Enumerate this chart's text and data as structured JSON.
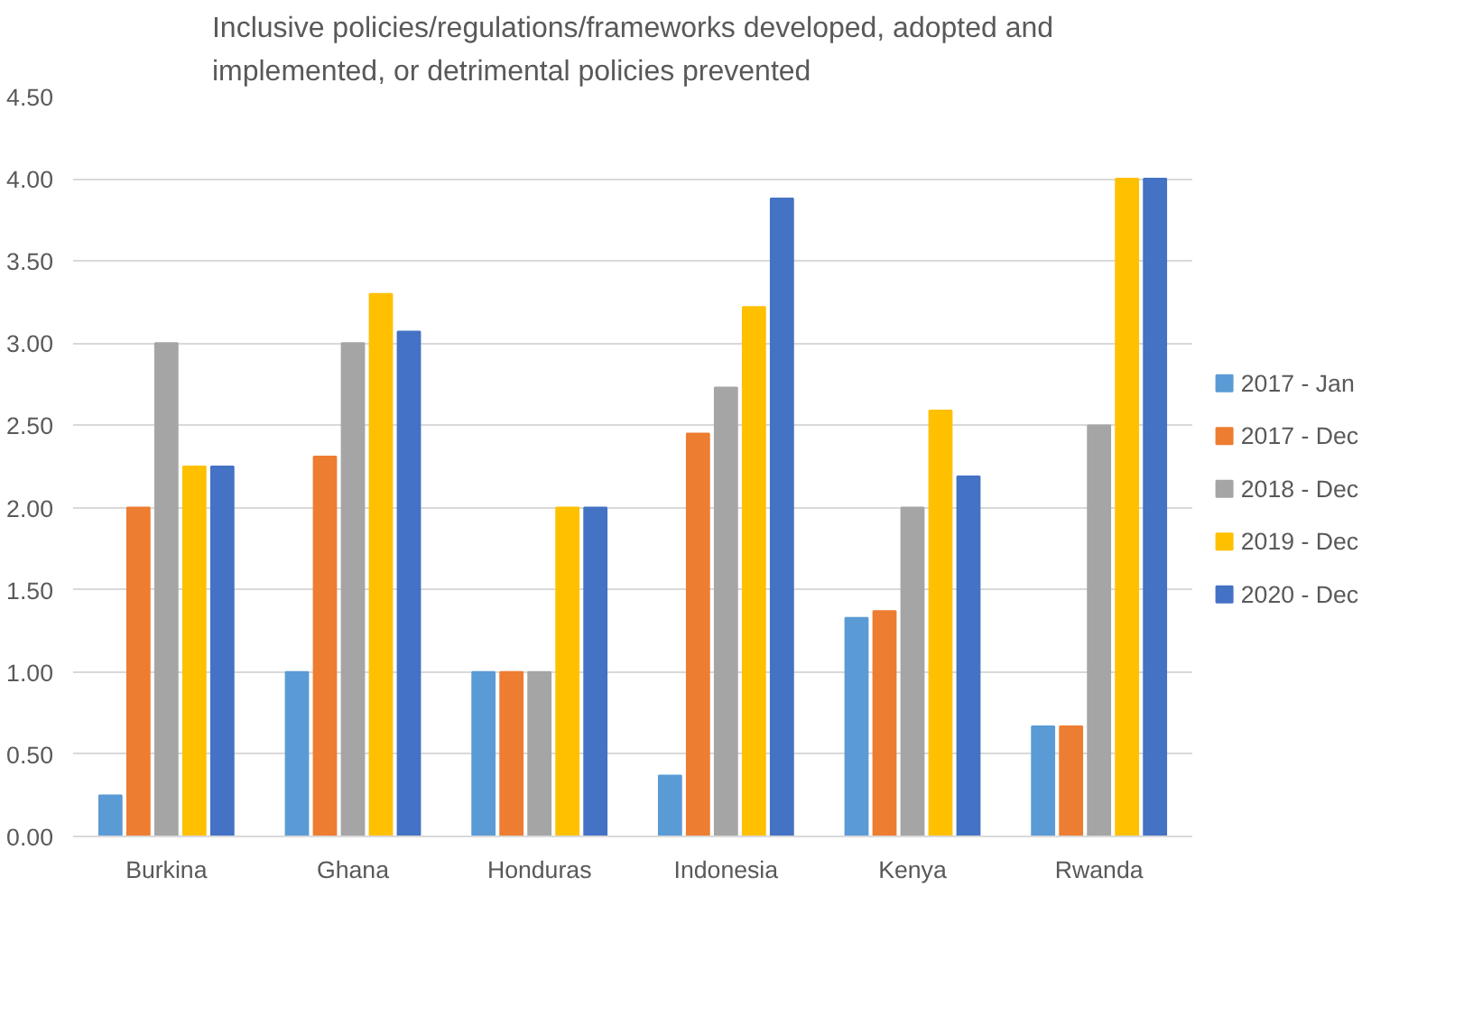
{
  "chart_data": {
    "type": "bar",
    "title": "Inclusive policies/regulations/frameworks developed, adopted and\nimplemented, or detrimental policies prevented",
    "categories": [
      "Burkina",
      "Ghana",
      "Honduras",
      "Indonesia",
      "Kenya",
      "Rwanda"
    ],
    "series": [
      {
        "name": "2017 - Jan",
        "color": "#5b9bd5",
        "values": [
          0.25,
          1.0,
          1.0,
          0.37,
          1.33,
          0.67
        ]
      },
      {
        "name": "2017 - Dec",
        "color": "#ed7d31",
        "values": [
          2.0,
          2.31,
          1.0,
          2.45,
          1.37,
          0.67
        ]
      },
      {
        "name": "2018 - Dec",
        "color": "#a5a5a5",
        "values": [
          3.0,
          3.0,
          1.0,
          2.73,
          2.0,
          2.5
        ]
      },
      {
        "name": "2019 - Dec",
        "color": "#ffc000",
        "values": [
          2.25,
          3.3,
          2.0,
          3.22,
          2.59,
          4.0
        ]
      },
      {
        "name": "2020 - Dec",
        "color": "#4472c4",
        "values": [
          2.25,
          3.07,
          2.0,
          3.88,
          2.19,
          4.0
        ]
      }
    ],
    "ylim": [
      0,
      4.5
    ],
    "yticks": [
      {
        "value": 0,
        "label": "0.00"
      },
      {
        "value": 0.5,
        "label": "0.50"
      },
      {
        "value": 1,
        "label": "1.00"
      },
      {
        "value": 1.5,
        "label": "1.50"
      },
      {
        "value": 2,
        "label": "2.00"
      },
      {
        "value": 2.5,
        "label": "2.50"
      },
      {
        "value": 3,
        "label": "3.00"
      },
      {
        "value": 3.5,
        "label": "3.50"
      },
      {
        "value": 4,
        "label": "4.00"
      },
      {
        "value": 4.5,
        "label": "4.50"
      }
    ],
    "grid": "y",
    "legend": "right"
  }
}
